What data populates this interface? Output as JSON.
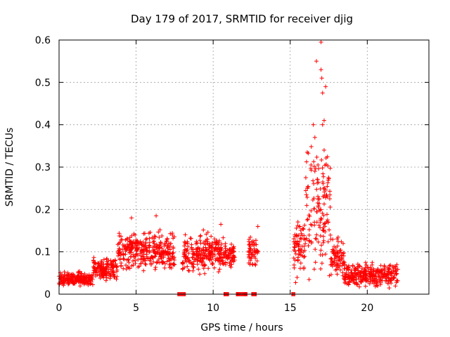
{
  "chart_data": {
    "type": "scatter",
    "title": "Day 179 of 2017, SRMTID for receiver djig",
    "xlabel": "GPS time / hours",
    "ylabel": "SRMTID / TECUs",
    "xlim": [
      0,
      24
    ],
    "ylim": [
      0,
      0.6
    ],
    "xticks": [
      0,
      5,
      10,
      15,
      20
    ],
    "yticks": [
      0,
      0.1,
      0.2,
      0.3,
      0.4,
      0.5,
      0.6
    ],
    "xtick_labels": [
      "0",
      "5",
      "10",
      "15",
      "20"
    ],
    "ytick_labels": [
      "0",
      "0.1",
      "0.2",
      "0.3",
      "0.4",
      "0.5",
      "0.6"
    ],
    "grid": true,
    "marker": "+",
    "color": "#ff0000",
    "series": [
      {
        "name": "SRMTID",
        "segments": [
          {
            "x_start": 0.0,
            "x_end": 2.2,
            "y_center": 0.035,
            "y_spread": 0.022
          },
          {
            "x_start": 2.2,
            "x_end": 3.8,
            "y_center": 0.06,
            "y_spread": 0.035
          },
          {
            "x_start": 3.8,
            "x_end": 5.2,
            "y_center": 0.1,
            "y_spread": 0.06
          },
          {
            "x_start": 5.2,
            "x_end": 7.5,
            "y_center": 0.1,
            "y_spread": 0.065
          },
          {
            "x_start": 8.0,
            "x_end": 10.8,
            "y_center": 0.095,
            "y_spread": 0.06
          },
          {
            "x_start": 10.8,
            "x_end": 11.4,
            "y_center": 0.09,
            "y_spread": 0.03
          },
          {
            "x_start": 12.3,
            "x_end": 12.9,
            "y_center": 0.1,
            "y_spread": 0.05
          },
          {
            "x_start": 15.2,
            "x_end": 16.0,
            "y_center": 0.11,
            "y_spread": 0.09
          },
          {
            "x_start": 16.0,
            "x_end": 17.6,
            "y_center": 0.2,
            "y_spread": 0.2
          },
          {
            "x_start": 17.6,
            "x_end": 18.5,
            "y_center": 0.09,
            "y_spread": 0.06
          },
          {
            "x_start": 18.5,
            "x_end": 22.0,
            "y_center": 0.045,
            "y_spread": 0.035
          }
        ],
        "peaks": [
          {
            "x": 16.5,
            "y": 0.4
          },
          {
            "x": 16.6,
            "y": 0.37
          },
          {
            "x": 16.7,
            "y": 0.55
          },
          {
            "x": 17.0,
            "y": 0.595
          },
          {
            "x": 17.0,
            "y": 0.53
          },
          {
            "x": 17.05,
            "y": 0.51
          },
          {
            "x": 17.1,
            "y": 0.475
          },
          {
            "x": 17.3,
            "y": 0.49
          },
          {
            "x": 17.2,
            "y": 0.41
          },
          {
            "x": 17.1,
            "y": 0.4
          },
          {
            "x": 17.2,
            "y": 0.34
          },
          {
            "x": 16.8,
            "y": 0.305
          },
          {
            "x": 16.6,
            "y": 0.29
          },
          {
            "x": 4.7,
            "y": 0.18
          },
          {
            "x": 6.3,
            "y": 0.185
          },
          {
            "x": 10.5,
            "y": 0.165
          },
          {
            "x": 12.9,
            "y": 0.16
          }
        ],
        "zero_clusters": [
          {
            "x_start": 7.7,
            "x_end": 8.2
          },
          {
            "x_start": 10.7,
            "x_end": 11.0
          },
          {
            "x_start": 11.5,
            "x_end": 12.2
          },
          {
            "x_start": 12.5,
            "x_end": 12.8
          },
          {
            "x_start": 15.1,
            "x_end": 15.3
          }
        ]
      }
    ]
  }
}
